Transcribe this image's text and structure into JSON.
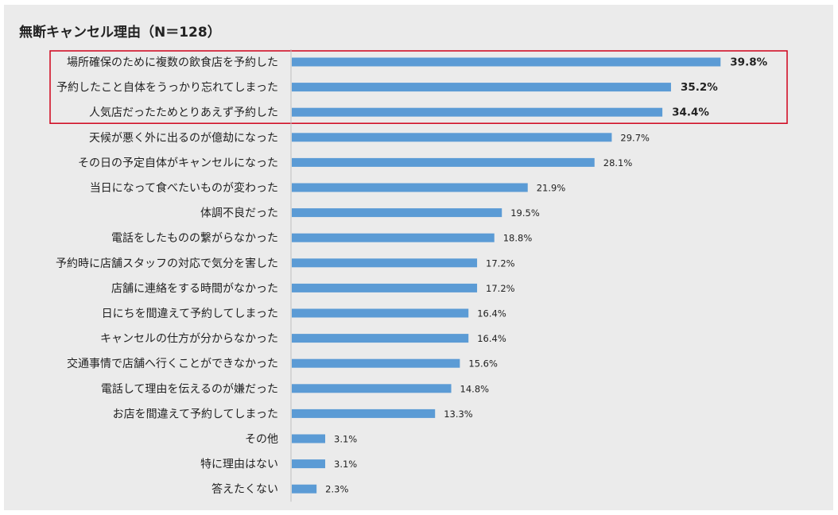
{
  "chart_data": {
    "type": "bar",
    "orientation": "horizontal",
    "title": "無断キャンセル理由（N＝128）",
    "xlim": [
      0,
      40
    ],
    "grid": false,
    "legend": "none",
    "categories": [
      "場所確保のために複数の飲食店を予約した",
      "予約したこと自体をうっかり忘れてしまった",
      "人気店だったためとりあえず予約した",
      "天候が悪く外に出るのが億劫になった",
      "その日の予定自体がキャンセルになった",
      "当日になって食べたいものが変わった",
      "体調不良だった",
      "電話をしたものの繋がらなかった",
      "予約時に店舗スタッフの対応で気分を害した",
      "店舗に連絡をする時間がなかった",
      "日にちを間違えて予約してしまった",
      "キャンセルの仕方が分からなかった",
      "交通事情で店舗へ行くことができなかった",
      "電話して理由を伝えるのが嫌だった",
      "お店を間違えて予約してしまった",
      "その他",
      "特に理由はない",
      "答えたくない"
    ],
    "values": [
      39.8,
      35.2,
      34.4,
      29.7,
      28.1,
      21.9,
      19.5,
      18.8,
      17.2,
      17.2,
      16.4,
      16.4,
      15.6,
      14.8,
      13.3,
      3.1,
      3.1,
      2.3
    ],
    "value_labels": [
      "39.8%",
      "35.2%",
      "34.4%",
      "29.7%",
      "28.1%",
      "21.9%",
      "19.5%",
      "18.8%",
      "17.2%",
      "17.2%",
      "16.4%",
      "16.4%",
      "15.6%",
      "14.8%",
      "13.3%",
      "3.1%",
      "3.1%",
      "2.3%"
    ],
    "highlighted_count": 3,
    "colors": {
      "bar": "#5b9bd5",
      "highlight_text": "#e00000",
      "highlight_box": "#d0021b",
      "axis": "#bfbfbf",
      "background": "#ebebeb"
    }
  }
}
